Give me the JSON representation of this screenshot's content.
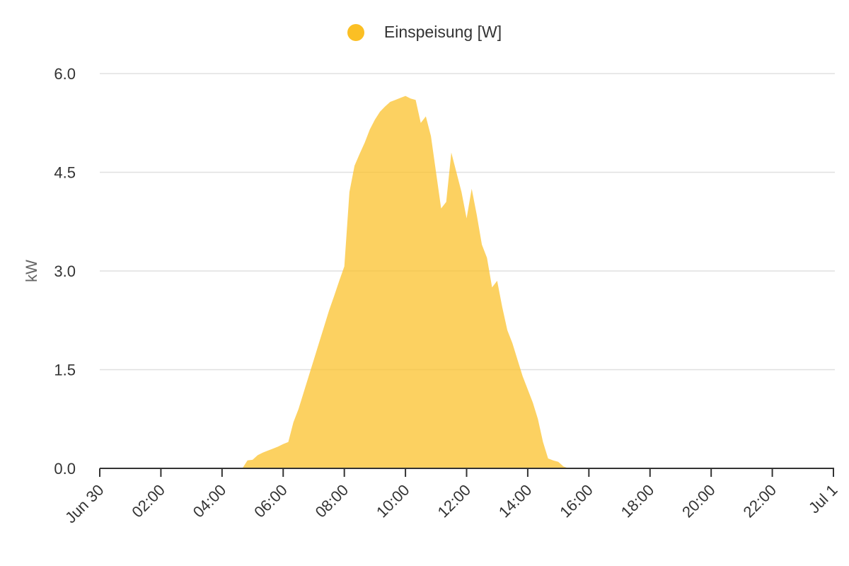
{
  "chart_data": {
    "type": "area",
    "series": [
      {
        "name": "Einspeisung [W]",
        "color": "#fbbf24",
        "x": [
          "04:40",
          "04:50",
          "05:00",
          "05:10",
          "05:20",
          "05:30",
          "05:40",
          "05:50",
          "06:00",
          "06:10",
          "06:20",
          "06:30",
          "06:40",
          "06:50",
          "07:00",
          "07:10",
          "07:20",
          "07:30",
          "07:40",
          "07:50",
          "08:00",
          "08:10",
          "08:20",
          "08:30",
          "08:40",
          "08:50",
          "09:00",
          "09:10",
          "09:20",
          "09:30",
          "09:40",
          "09:50",
          "10:00",
          "10:10",
          "10:20",
          "10:30",
          "10:40",
          "10:50",
          "11:00",
          "11:10",
          "11:20",
          "11:30",
          "11:40",
          "11:50",
          "12:00",
          "12:10",
          "12:20",
          "12:30",
          "12:40",
          "12:50",
          "13:00",
          "13:10",
          "13:20",
          "13:30",
          "13:40",
          "13:50",
          "14:00",
          "14:10",
          "14:20",
          "14:30",
          "14:40",
          "14:50",
          "15:00",
          "15:10",
          "15:20",
          "15:30",
          "15:40",
          "15:50",
          "16:00",
          "16:10",
          "16:20",
          "16:30",
          "16:40",
          "16:50",
          "17:00",
          "17:10",
          "17:20",
          "17:30",
          "17:40",
          "17:50",
          "18:00",
          "18:10",
          "18:20",
          "18:30",
          "18:40",
          "18:50",
          "19:00"
        ],
        "values": [
          0.0,
          0.12,
          0.13,
          0.2,
          0.24,
          0.27,
          0.3,
          0.33,
          0.37,
          0.4,
          0.7,
          0.9,
          1.15,
          1.4,
          1.65,
          1.9,
          2.15,
          2.4,
          2.62,
          2.85,
          3.07,
          4.2,
          4.6,
          4.78,
          4.95,
          5.15,
          5.3,
          5.42,
          5.5,
          5.57,
          5.6,
          5.63,
          5.66,
          5.62,
          5.6,
          5.25,
          5.35,
          5.05,
          4.5,
          3.95,
          4.05,
          4.8,
          4.5,
          4.2,
          3.8,
          4.25,
          3.85,
          3.4,
          3.2,
          2.75,
          2.85,
          2.45,
          2.1,
          1.9,
          1.65,
          1.4,
          1.2,
          1.0,
          0.75,
          0.4,
          0.15,
          0.12,
          0.1,
          0.03,
          0.0,
          0.0,
          0.0,
          0.0,
          0.0,
          0.0,
          0.0,
          0.0,
          0.0,
          0.0,
          0.0,
          0.0,
          0.0,
          0.0,
          0.0,
          0.0,
          0.0,
          0.0,
          0.0,
          0.0,
          0.0,
          0.0,
          0.0
        ]
      }
    ],
    "xlim": [
      "00:00",
      "24:00"
    ],
    "x_ticks": [
      "Jun 30",
      "02:00",
      "04:00",
      "06:00",
      "08:00",
      "10:00",
      "12:00",
      "14:00",
      "16:00",
      "18:00",
      "20:00",
      "22:00",
      "Jul 1"
    ],
    "ylabel": "kW",
    "ylim": [
      0,
      6
    ],
    "y_ticks": [
      "0.0",
      "1.5",
      "3.0",
      "4.5",
      "6.0"
    ],
    "grid": true,
    "legend_position": "top-center"
  }
}
